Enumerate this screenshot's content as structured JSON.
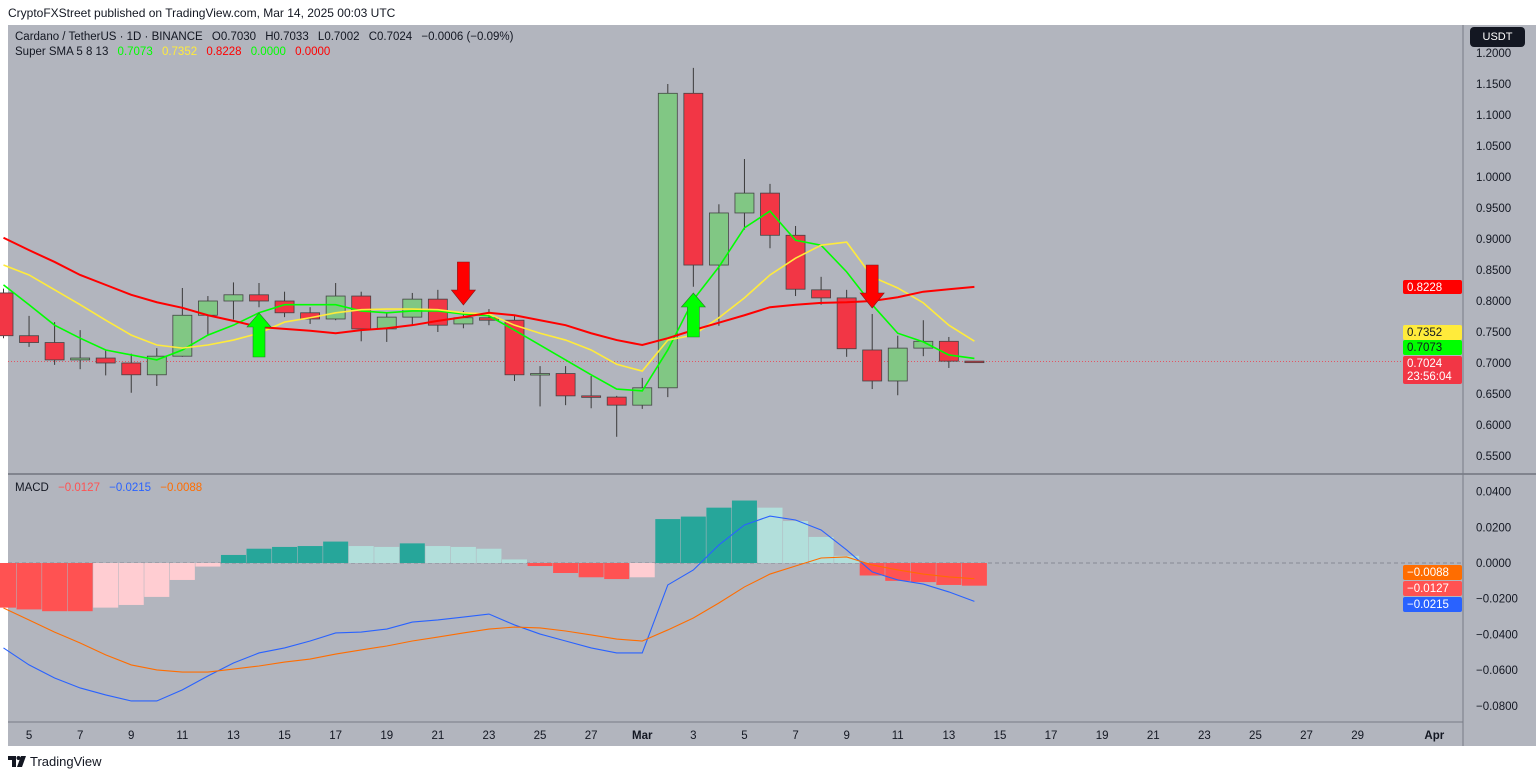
{
  "header": {
    "published": "CryptoFXStreet published on TradingView.com, Mar 14, 2025 00:03 UTC"
  },
  "legend": {
    "symbol": "Cardano / TetherUS · 1D · BINANCE",
    "open": "O0.7030",
    "high": "H0.7033",
    "low": "L0.7002",
    "close": "C0.7024",
    "change": "−0.0006 (−0.09%)",
    "sma_label": "Super SMA 5 8 13",
    "sma_vals": [
      "0.7073",
      "0.7352",
      "0.8228",
      "0.0000",
      "0.0000"
    ],
    "macd_label": "MACD",
    "macd_vals": [
      "−0.0127",
      "−0.0215",
      "−0.0088"
    ]
  },
  "currency_button": "USDT",
  "footer": {
    "brand": "TradingView"
  },
  "colors": {
    "bg": "#b2b5be",
    "up": "#81c784",
    "down": "#f23645",
    "sma5": "#00ff00",
    "sma8": "#ffeb3b",
    "sma13": "#ff0000",
    "macd": "#2962ff",
    "signal": "#ff6d00",
    "hist_up_strong": "#26a69a",
    "hist_up_weak": "#b2dfdb",
    "hist_down_strong": "#ff5252",
    "hist_down_weak": "#ffcdd2"
  },
  "chart_data": [
    {
      "type": "candlestick",
      "title": "Cardano / TetherUS · 1D · BINANCE",
      "ylim": [
        0.53,
        1.2
      ],
      "y_ticks": [
        "1.2000",
        "1.1500",
        "1.1000",
        "1.0500",
        "1.0000",
        "0.9500",
        "0.9000",
        "0.8500",
        "0.8000",
        "0.7500",
        "0.7000",
        "0.6500",
        "0.6000",
        "0.5500"
      ],
      "x_start": "2025-02-04",
      "x_ticks": [
        "5",
        "7",
        "9",
        "11",
        "13",
        "15",
        "17",
        "19",
        "21",
        "23",
        "25",
        "27",
        "Mar",
        "3",
        "5",
        "7",
        "9",
        "11",
        "13",
        "15",
        "17",
        "19",
        "21",
        "23",
        "25",
        "27",
        "29",
        "Apr"
      ],
      "ohlc": [
        [
          0.813,
          0.82,
          0.74,
          0.744
        ],
        [
          0.744,
          0.776,
          0.726,
          0.733
        ],
        [
          0.733,
          0.766,
          0.697,
          0.705
        ],
        [
          0.705,
          0.753,
          0.69,
          0.708
        ],
        [
          0.708,
          0.72,
          0.68,
          0.7
        ],
        [
          0.7,
          0.715,
          0.652,
          0.681
        ],
        [
          0.681,
          0.724,
          0.663,
          0.711
        ],
        [
          0.711,
          0.821,
          0.71,
          0.777
        ],
        [
          0.777,
          0.808,
          0.745,
          0.8
        ],
        [
          0.8,
          0.83,
          0.77,
          0.81
        ],
        [
          0.81,
          0.829,
          0.79,
          0.8
        ],
        [
          0.8,
          0.815,
          0.774,
          0.781
        ],
        [
          0.781,
          0.79,
          0.763,
          0.771
        ],
        [
          0.771,
          0.829,
          0.769,
          0.808
        ],
        [
          0.808,
          0.815,
          0.735,
          0.755
        ],
        [
          0.755,
          0.781,
          0.734,
          0.774
        ],
        [
          0.774,
          0.813,
          0.761,
          0.803
        ],
        [
          0.803,
          0.818,
          0.75,
          0.761
        ],
        [
          0.763,
          0.784,
          0.756,
          0.773
        ],
        [
          0.773,
          0.787,
          0.761,
          0.769
        ],
        [
          0.769,
          0.776,
          0.671,
          0.681
        ],
        [
          0.681,
          0.695,
          0.63,
          0.683
        ],
        [
          0.683,
          0.695,
          0.632,
          0.647
        ],
        [
          0.647,
          0.679,
          0.627,
          0.645
        ],
        [
          0.645,
          0.647,
          0.581,
          0.632
        ],
        [
          0.632,
          0.676,
          0.626,
          0.66
        ],
        [
          0.66,
          1.15,
          0.645,
          1.135
        ],
        [
          1.135,
          1.176,
          0.823,
          0.858
        ],
        [
          0.858,
          0.956,
          0.76,
          0.942
        ],
        [
          0.942,
          1.029,
          0.915,
          0.974
        ],
        [
          0.974,
          0.989,
          0.885,
          0.906
        ],
        [
          0.906,
          0.921,
          0.808,
          0.819
        ],
        [
          0.818,
          0.839,
          0.794,
          0.805
        ],
        [
          0.805,
          0.818,
          0.71,
          0.723
        ],
        [
          0.721,
          0.779,
          0.658,
          0.671
        ],
        [
          0.671,
          0.744,
          0.648,
          0.724
        ],
        [
          0.724,
          0.769,
          0.711,
          0.735
        ],
        [
          0.735,
          0.742,
          0.692,
          0.703
        ],
        [
          0.703,
          0.7033,
          0.7002,
          0.7024
        ]
      ],
      "series": [
        {
          "name": "SMA 5",
          "values": [
            0.826,
            0.794,
            0.761,
            0.74,
            0.721,
            0.713,
            0.705,
            0.721,
            0.745,
            0.761,
            0.781,
            0.794,
            0.794,
            0.794,
            0.784,
            0.781,
            0.784,
            0.784,
            0.779,
            0.776,
            0.753,
            0.729,
            0.705,
            0.681,
            0.658,
            0.655,
            0.721,
            0.802,
            0.855,
            0.918,
            0.945,
            0.898,
            0.89,
            0.847,
            0.794,
            0.748,
            0.734,
            0.713,
            0.7073
          ]
        },
        {
          "name": "SMA 8",
          "values": [
            0.858,
            0.842,
            0.818,
            0.794,
            0.769,
            0.745,
            0.729,
            0.724,
            0.729,
            0.737,
            0.748,
            0.766,
            0.773,
            0.781,
            0.786,
            0.787,
            0.787,
            0.786,
            0.781,
            0.779,
            0.761,
            0.748,
            0.737,
            0.721,
            0.698,
            0.687,
            0.737,
            0.745,
            0.773,
            0.805,
            0.842,
            0.869,
            0.89,
            0.895,
            0.839,
            0.821,
            0.797,
            0.761,
            0.7352
          ]
        },
        {
          "name": "SMA 13",
          "values": [
            0.902,
            0.882,
            0.863,
            0.842,
            0.826,
            0.81,
            0.798,
            0.789,
            0.777,
            0.768,
            0.758,
            0.755,
            0.752,
            0.748,
            0.753,
            0.756,
            0.761,
            0.768,
            0.774,
            0.781,
            0.777,
            0.769,
            0.761,
            0.748,
            0.737,
            0.729,
            0.74,
            0.753,
            0.765,
            0.777,
            0.79,
            0.794,
            0.797,
            0.798,
            0.8,
            0.806,
            0.815,
            0.819,
            0.8228
          ]
        }
      ],
      "signals": [
        {
          "day": "2025-02-14",
          "dir": "up"
        },
        {
          "day": "2025-02-22",
          "dir": "down"
        },
        {
          "day": "2025-03-03",
          "dir": "up"
        },
        {
          "day": "2025-03-10",
          "dir": "down"
        }
      ],
      "last_price": {
        "value": "0.7024",
        "countdown": "23:56:04"
      },
      "price_labels": [
        "0.8228",
        "0.7352",
        "0.7073"
      ]
    },
    {
      "type": "macd",
      "ylim": [
        -0.088,
        0.044
      ],
      "y_ticks": [
        "0.0400",
        "0.0200",
        "0.0000",
        "−0.0200",
        "−0.0400",
        "−0.0600",
        "−0.0800"
      ],
      "histogram": [
        -0.025,
        -0.026,
        -0.027,
        -0.027,
        -0.025,
        -0.0235,
        -0.019,
        -0.0095,
        -0.002,
        0.0045,
        0.008,
        0.009,
        0.0095,
        0.012,
        0.0095,
        0.009,
        0.011,
        0.0095,
        0.009,
        0.008,
        0.002,
        -0.0017,
        -0.0056,
        -0.008,
        -0.009,
        -0.008,
        0.0246,
        0.026,
        0.031,
        0.035,
        0.031,
        0.0235,
        0.0146,
        0.004,
        -0.007,
        -0.01,
        -0.0107,
        -0.0123,
        -0.0127
      ],
      "macd": [
        -0.0476,
        -0.0571,
        -0.0644,
        -0.07,
        -0.0739,
        -0.0773,
        -0.0773,
        -0.0711,
        -0.0633,
        -0.056,
        -0.0504,
        -0.0476,
        -0.0437,
        -0.0392,
        -0.0387,
        -0.037,
        -0.0331,
        -0.0319,
        -0.0303,
        -0.0286,
        -0.0347,
        -0.0398,
        -0.0437,
        -0.0476,
        -0.0504,
        -0.0504,
        -0.0123,
        -0.0039,
        0.0101,
        0.0213,
        0.0263,
        0.0241,
        0.0185,
        0.0073,
        -0.005,
        -0.0095,
        -0.0118,
        -0.0162,
        -0.0215
      ],
      "signal": [
        -0.0252,
        -0.0319,
        -0.0387,
        -0.0448,
        -0.0515,
        -0.0571,
        -0.0599,
        -0.0611,
        -0.0611,
        -0.0594,
        -0.0577,
        -0.0555,
        -0.0538,
        -0.051,
        -0.0487,
        -0.0465,
        -0.0437,
        -0.0415,
        -0.0392,
        -0.037,
        -0.0359,
        -0.0364,
        -0.0381,
        -0.0403,
        -0.0426,
        -0.0437,
        -0.0375,
        -0.0308,
        -0.0224,
        -0.0134,
        -0.0062,
        -0.0017,
        0.0028,
        0.0034,
        -0.0011,
        -0.0039,
        -0.0062,
        -0.0078,
        -0.0088
      ],
      "price_labels": [
        "−0.0088",
        "−0.0127",
        "−0.0215"
      ]
    }
  ]
}
